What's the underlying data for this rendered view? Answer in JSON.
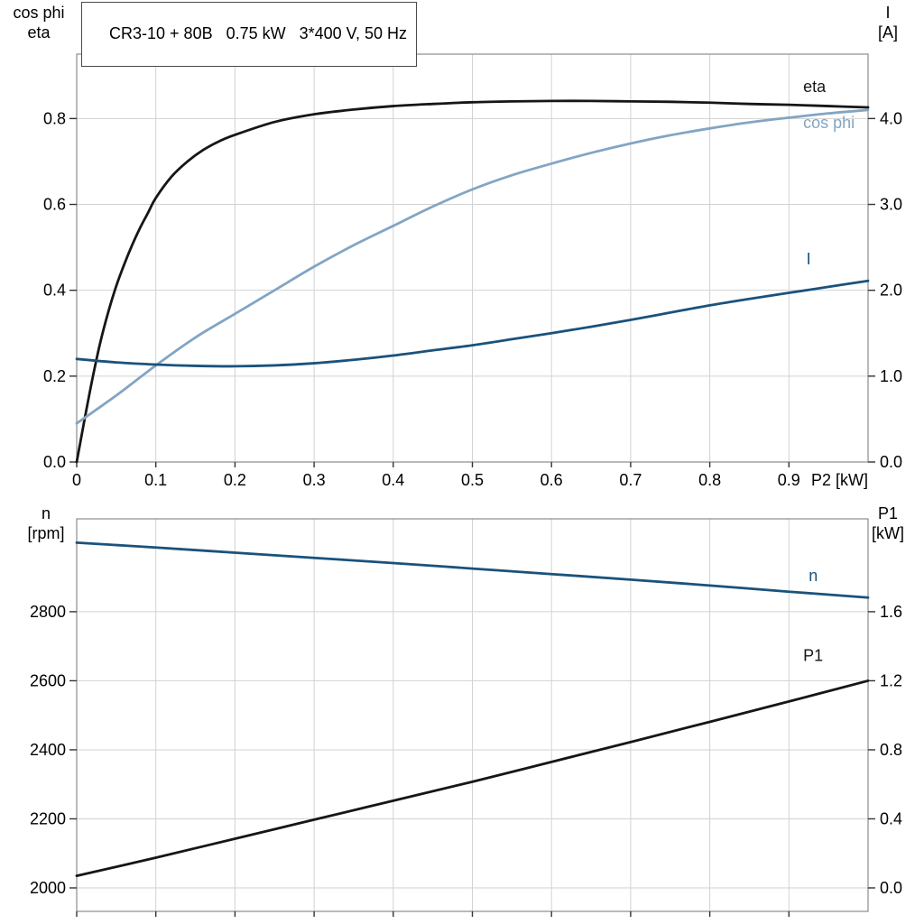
{
  "title_box": {
    "text": "CR3-10 + 80B   0.75 kW   3*400 V, 50 Hz"
  },
  "upper": {
    "left_axis_label_line1": "cos phi",
    "left_axis_label_line2": "eta",
    "right_axis_label_line1": "I",
    "right_axis_label_line2": "[A]"
  },
  "lower": {
    "left_axis_label_line1": "n",
    "left_axis_label_line2": "[rpm]",
    "right_axis_label_line1": "P1",
    "right_axis_label_line2": "[kW]"
  },
  "colors": {
    "curve_black": "#161616",
    "curve_light_blue": "#82a5c4",
    "curve_dark_blue": "#1a527c",
    "grid": "#d2d2d2",
    "frame": "#8c8c8c",
    "tick": "#333333",
    "text": "#000000"
  },
  "chart_data": [
    {
      "type": "line",
      "title": "CR3-10 + 80B 0.75 kW 3*400 V, 50 Hz",
      "xlabel": "P2 [kW]",
      "x_end_label": "P2 [kW]",
      "xlim": [
        0,
        1.0
      ],
      "x_grid": [
        0,
        0.1,
        0.2,
        0.3,
        0.4,
        0.5,
        0.6,
        0.7,
        0.8,
        0.9,
        1.0
      ],
      "x_ticks": [
        0,
        0.1,
        0.2,
        0.3,
        0.4,
        0.5,
        0.6,
        0.7,
        0.8,
        0.9
      ],
      "x_tick_labels": [
        "0",
        "0.1",
        "0.2",
        "0.3",
        "0.4",
        "0.5",
        "0.6",
        "0.7",
        "0.8",
        "0.9"
      ],
      "left_axis": {
        "label": "cos phi / eta",
        "lim": [
          0,
          0.95
        ],
        "ticks": [
          0.0,
          0.2,
          0.4,
          0.6,
          0.8
        ],
        "tick_labels": [
          "0.0",
          "0.2",
          "0.4",
          "0.6",
          "0.8"
        ]
      },
      "right_axis": {
        "label": "I [A]",
        "lim": [
          0,
          4.75
        ],
        "ticks": [
          0.0,
          1.0,
          2.0,
          3.0,
          4.0
        ],
        "tick_labels": [
          "0.0",
          "1.0",
          "2.0",
          "3.0",
          "4.0"
        ]
      },
      "series": [
        {
          "name": "eta",
          "axis": "left",
          "color_key": "curve_black",
          "label_at": {
            "x": 0.918,
            "value": 0.862
          },
          "points": [
            [
              0,
              0
            ],
            [
              0.005,
              0.05
            ],
            [
              0.01,
              0.1
            ],
            [
              0.02,
              0.195
            ],
            [
              0.03,
              0.28
            ],
            [
              0.04,
              0.35
            ],
            [
              0.05,
              0.41
            ],
            [
              0.06,
              0.46
            ],
            [
              0.07,
              0.505
            ],
            [
              0.08,
              0.545
            ],
            [
              0.09,
              0.58
            ],
            [
              0.1,
              0.615
            ],
            [
              0.12,
              0.665
            ],
            [
              0.14,
              0.7
            ],
            [
              0.16,
              0.727
            ],
            [
              0.18,
              0.747
            ],
            [
              0.2,
              0.762
            ],
            [
              0.25,
              0.792
            ],
            [
              0.3,
              0.81
            ],
            [
              0.35,
              0.821
            ],
            [
              0.4,
              0.829
            ],
            [
              0.45,
              0.834
            ],
            [
              0.5,
              0.838
            ],
            [
              0.55,
              0.84
            ],
            [
              0.6,
              0.841
            ],
            [
              0.65,
              0.841
            ],
            [
              0.7,
              0.84
            ],
            [
              0.75,
              0.839
            ],
            [
              0.8,
              0.837
            ],
            [
              0.85,
              0.834
            ],
            [
              0.9,
              0.832
            ],
            [
              0.95,
              0.829
            ],
            [
              1.0,
              0.826
            ]
          ]
        },
        {
          "name": "cos phi",
          "axis": "left",
          "color_key": "curve_light_blue",
          "label_at": {
            "x": 0.918,
            "value": 0.778
          },
          "points": [
            [
              0,
              0.09
            ],
            [
              0.05,
              0.155
            ],
            [
              0.1,
              0.225
            ],
            [
              0.15,
              0.29
            ],
            [
              0.2,
              0.345
            ],
            [
              0.25,
              0.4
            ],
            [
              0.3,
              0.455
            ],
            [
              0.35,
              0.505
            ],
            [
              0.4,
              0.55
            ],
            [
              0.45,
              0.595
            ],
            [
              0.5,
              0.635
            ],
            [
              0.55,
              0.668
            ],
            [
              0.6,
              0.695
            ],
            [
              0.65,
              0.72
            ],
            [
              0.7,
              0.742
            ],
            [
              0.75,
              0.761
            ],
            [
              0.8,
              0.777
            ],
            [
              0.85,
              0.791
            ],
            [
              0.9,
              0.802
            ],
            [
              0.95,
              0.812
            ],
            [
              1.0,
              0.82
            ]
          ]
        },
        {
          "name": "I",
          "axis": "right",
          "color_key": "curve_dark_blue",
          "label_at": {
            "x": 0.922,
            "value": 2.3
          },
          "points": [
            [
              0,
              1.2
            ],
            [
              0.05,
              1.16
            ],
            [
              0.1,
              1.135
            ],
            [
              0.15,
              1.12
            ],
            [
              0.2,
              1.115
            ],
            [
              0.25,
              1.125
            ],
            [
              0.3,
              1.15
            ],
            [
              0.35,
              1.19
            ],
            [
              0.4,
              1.24
            ],
            [
              0.45,
              1.3
            ],
            [
              0.5,
              1.36
            ],
            [
              0.55,
              1.43
            ],
            [
              0.6,
              1.5
            ],
            [
              0.65,
              1.575
            ],
            [
              0.7,
              1.655
            ],
            [
              0.75,
              1.74
            ],
            [
              0.8,
              1.825
            ],
            [
              0.85,
              1.9
            ],
            [
              0.9,
              1.97
            ],
            [
              0.95,
              2.04
            ],
            [
              1.0,
              2.11
            ]
          ]
        }
      ]
    },
    {
      "type": "line",
      "title": "",
      "xlabel": "",
      "x_end_label": "",
      "xlim": [
        0,
        1.0
      ],
      "x_grid": [
        0,
        0.1,
        0.2,
        0.3,
        0.4,
        0.5,
        0.6,
        0.7,
        0.8,
        0.9,
        1.0
      ],
      "x_ticks": [
        0,
        0.1,
        0.2,
        0.3,
        0.4,
        0.5,
        0.6,
        0.7,
        0.8,
        0.9
      ],
      "x_tick_labels": [],
      "left_axis": {
        "label": "n [rpm]",
        "lim": [
          1932,
          3069
        ],
        "ticks": [
          2000,
          2200,
          2400,
          2600,
          2800
        ],
        "tick_labels": [
          "2000",
          "2200",
          "2400",
          "2600",
          "2800"
        ]
      },
      "right_axis": {
        "label": "P1 [kW]",
        "lim": [
          -0.136,
          2.138
        ],
        "ticks": [
          0.0,
          0.4,
          0.8,
          1.2,
          1.6
        ],
        "tick_labels": [
          "0.0",
          "0.4",
          "0.8",
          "1.2",
          "1.6"
        ]
      },
      "series": [
        {
          "name": "n",
          "axis": "left",
          "color_key": "curve_dark_blue",
          "label_at": {
            "x": 0.925,
            "value": 2888
          },
          "points": [
            [
              0,
              3000
            ],
            [
              0.1,
              2986
            ],
            [
              0.2,
              2971
            ],
            [
              0.3,
              2956
            ],
            [
              0.4,
              2941
            ],
            [
              0.5,
              2925
            ],
            [
              0.6,
              2909
            ],
            [
              0.7,
              2893
            ],
            [
              0.8,
              2876
            ],
            [
              0.9,
              2858
            ],
            [
              1.0,
              2841
            ]
          ]
        },
        {
          "name": "P1",
          "axis": "right",
          "color_key": "curve_black",
          "label_at": {
            "x": 0.918,
            "value": 1.315
          },
          "points": [
            [
              0,
              0.07
            ],
            [
              0.1,
              0.175
            ],
            [
              0.2,
              0.285
            ],
            [
              0.3,
              0.395
            ],
            [
              0.4,
              0.505
            ],
            [
              0.5,
              0.615
            ],
            [
              0.6,
              0.73
            ],
            [
              0.7,
              0.845
            ],
            [
              0.8,
              0.962
            ],
            [
              0.9,
              1.08
            ],
            [
              1.0,
              1.2
            ]
          ]
        }
      ]
    }
  ]
}
